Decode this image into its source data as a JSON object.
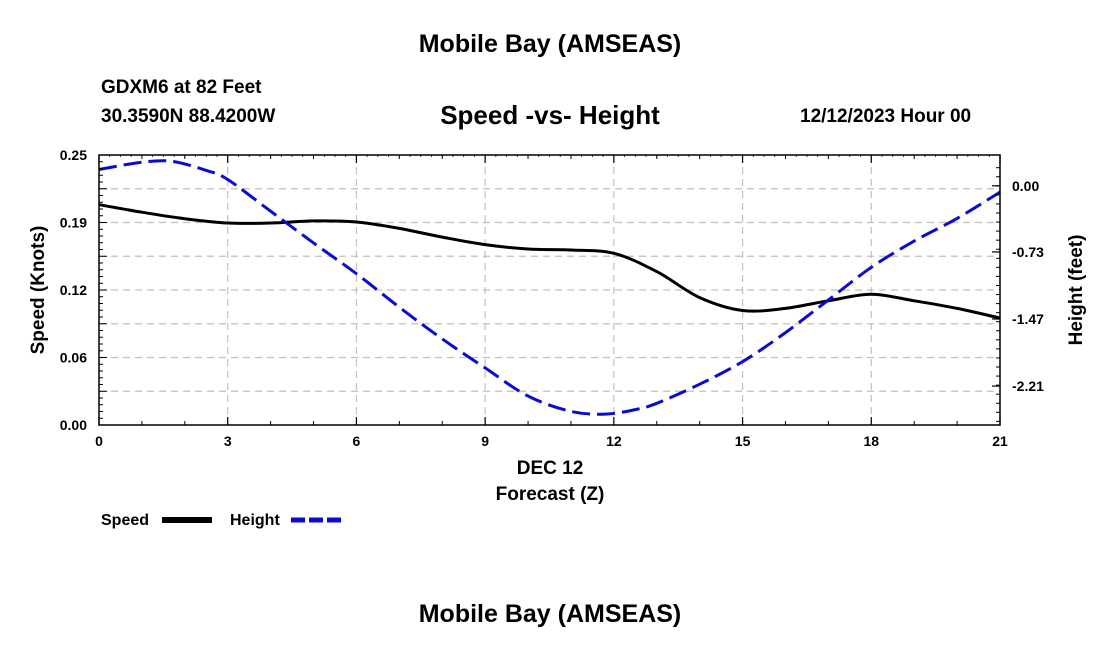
{
  "header": {
    "title": "Mobile Bay (AMSEAS)",
    "station": "GDXM6 at 82 Feet",
    "coords": "30.3590N  88.4200W",
    "chart_title": "Speed -vs- Height",
    "date": "12/12/2023 Hour 00"
  },
  "footer": {
    "title": "Mobile Bay (AMSEAS)"
  },
  "colors": {
    "speed": "#000000",
    "height": "#0a0ad0",
    "grid": "#c0c0c0"
  },
  "chart_data": {
    "type": "line",
    "title": "Speed -vs- Height",
    "xlabel": "Forecast (Z)",
    "xlabel_date": "DEC 12",
    "ylabel": "Speed (Knots)",
    "y2label": "Height (feet)",
    "xlim": [
      0,
      21
    ],
    "ylim": [
      0,
      0.25
    ],
    "y2lim": [
      -2.64,
      0.34
    ],
    "x_ticks": [
      0,
      3,
      6,
      9,
      12,
      15,
      18,
      21
    ],
    "y_ticks": [
      "0.00",
      "0.06",
      "0.12",
      "0.19",
      "0.25"
    ],
    "y_tick_values": [
      0.0,
      0.0625,
      0.125,
      0.1875,
      0.25
    ],
    "y2_ticks": [
      "0.00",
      "-0.73",
      "-1.47",
      "-2.21"
    ],
    "y2_tick_values": [
      0.0,
      -0.73,
      -1.47,
      -2.21
    ],
    "grid": true,
    "legend": "bottom-left",
    "series": [
      {
        "name": "Speed",
        "axis": "left",
        "style": "solid",
        "x": [
          0,
          1,
          2,
          3,
          4,
          5,
          6,
          7,
          8,
          9,
          10,
          11,
          12,
          13,
          14,
          15,
          16,
          17,
          18,
          19,
          20,
          21
        ],
        "values": [
          0.204,
          0.197,
          0.191,
          0.187,
          0.187,
          0.189,
          0.188,
          0.182,
          0.174,
          0.167,
          0.163,
          0.162,
          0.159,
          0.142,
          0.118,
          0.106,
          0.108,
          0.115,
          0.121,
          0.115,
          0.108,
          0.099
        ]
      },
      {
        "name": "Height",
        "axis": "right",
        "style": "dashed",
        "x": [
          0,
          1,
          1.7,
          2.5,
          3,
          4,
          5,
          6,
          7,
          8,
          9,
          10,
          11,
          11.8,
          12.5,
          13,
          14,
          15,
          16,
          17,
          18,
          19,
          20,
          21
        ],
        "values": [
          0.18,
          0.26,
          0.27,
          0.17,
          0.07,
          -0.28,
          -0.63,
          -0.97,
          -1.34,
          -1.69,
          -2.01,
          -2.32,
          -2.49,
          -2.52,
          -2.47,
          -2.4,
          -2.19,
          -1.94,
          -1.62,
          -1.26,
          -0.9,
          -0.61,
          -0.36,
          -0.07
        ]
      }
    ]
  }
}
